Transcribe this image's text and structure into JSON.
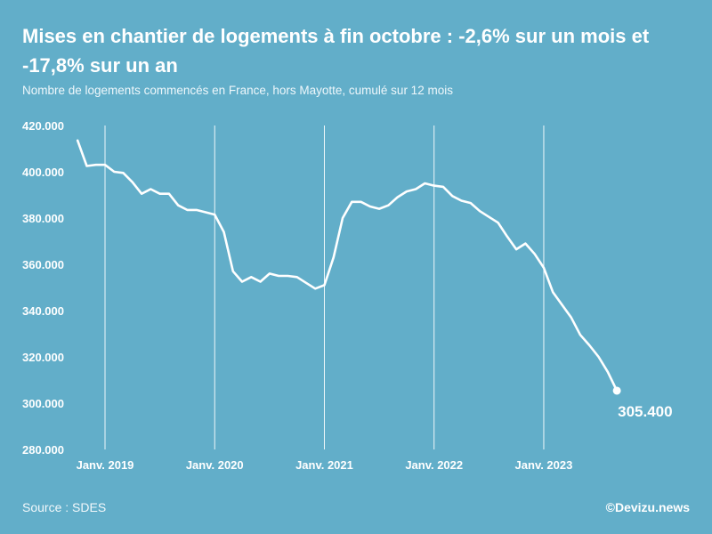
{
  "chart_data": {
    "type": "line",
    "title": "Mises en chantier de logements à fin octobre : -2,6% sur un mois et -17,8% sur un an",
    "subtitle": "Nombre de logements commencés en France, hors Mayotte, cumulé sur 12 mois",
    "y_ticks": [
      280000,
      300000,
      320000,
      340000,
      360000,
      380000,
      400000,
      420000
    ],
    "y_tick_labels": [
      "280.000",
      "300.000",
      "320.000",
      "340.000",
      "360.000",
      "380.000",
      "400.000",
      "420.000"
    ],
    "ylim": [
      280000,
      420000
    ],
    "x_ticks": [
      {
        "year": 2019,
        "label": "Janv. 2019"
      },
      {
        "year": 2020,
        "label": "Janv. 2020"
      },
      {
        "year": 2021,
        "label": "Janv. 2021"
      },
      {
        "year": 2022,
        "label": "Janv. 2022"
      },
      {
        "year": 2023,
        "label": "Janv. 2023"
      }
    ],
    "x_start": "2018-10",
    "grid": "vertical",
    "series": [
      {
        "color": "#ffffff",
        "values": [
          413500,
          402500,
          403000,
          403000,
          400000,
          399500,
          395500,
          390500,
          392500,
          390500,
          390500,
          385500,
          383500,
          383500,
          382500,
          381500,
          374000,
          357000,
          352500,
          354500,
          352500,
          356000,
          355000,
          355000,
          354500,
          352000,
          349500,
          351000,
          363000,
          380000,
          387000,
          387000,
          385000,
          384000,
          385500,
          389000,
          391500,
          392500,
          395000,
          394000,
          393500,
          389500,
          387500,
          386500,
          383000,
          380500,
          378000,
          372000,
          366500,
          369000,
          364500,
          358500,
          348000,
          342500,
          337000,
          329500,
          325000,
          320000,
          313500,
          305400
        ]
      }
    ],
    "end_label": "305.400"
  },
  "source": "Source : SDES",
  "credit": "©Devizu.news"
}
